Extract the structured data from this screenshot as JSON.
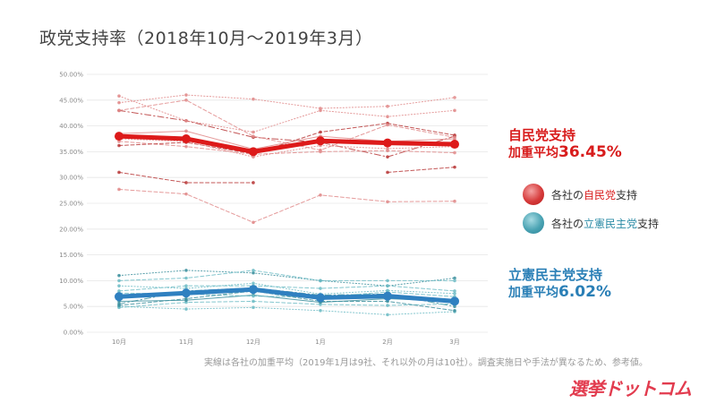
{
  "title": "政党支持率（2018年10月～2019年3月）",
  "footnote": "実線は各社の加重平均（2019年1月は9社、それ以外の月は10社）。調査実施日や手法が異なるため、参考値。",
  "logo": "選挙ドットコム",
  "annotations": {
    "ldp": {
      "title": "自民党支持",
      "avg_label": "加重平均",
      "avg_value": "36.45%"
    },
    "cdp": {
      "title": "立憲民主党支持",
      "avg_label": "加重平均",
      "avg_value": "6.02%"
    }
  },
  "legend": [
    {
      "prefix": "各社の",
      "party": "自民党",
      "suffix": "支持",
      "color": "#d63b3b"
    },
    {
      "prefix": "各社の",
      "party": "立憲民主党",
      "suffix": "支持",
      "color": "#4aa3b3"
    }
  ],
  "colors": {
    "ldp_avg": "#dd1a1a",
    "ldp_polls": "#e08a8a",
    "ldp_polls_dark": "#b83a3a",
    "cdp_avg": "#2f80c0",
    "cdp_polls": "#6fbcc6",
    "cdp_polls_dark": "#3c8f9e"
  },
  "chart_data": {
    "type": "line",
    "categories": [
      "10月",
      "11月",
      "12月",
      "1月",
      "2月",
      "3月"
    ],
    "y_ticks": [
      "0.00%",
      "5.00%",
      "10.00%",
      "15.00%",
      "20.00%",
      "25.00%",
      "30.00%",
      "35.00%",
      "40.00%",
      "45.00%",
      "50.00%"
    ],
    "ylim": [
      0,
      50
    ],
    "grid": true,
    "series": [
      {
        "party": "ldp",
        "kind": "average",
        "values": [
          38.0,
          37.5,
          35.0,
          37.1,
          36.7,
          36.45
        ]
      },
      {
        "party": "ldp",
        "kind": "poll",
        "style": "dotted",
        "values": [
          44.5,
          46.0,
          45.2,
          43.4,
          43.8,
          45.5
        ]
      },
      {
        "party": "ldp",
        "kind": "poll",
        "style": "dashdot",
        "values": [
          43.0,
          41.0,
          37.8,
          36.8,
          34.0,
          38.0
        ]
      },
      {
        "party": "ldp",
        "kind": "poll",
        "style": "dashed",
        "values": [
          37.0,
          36.0,
          34.5,
          35.0,
          35.2,
          34.8
        ]
      },
      {
        "party": "ldp",
        "kind": "poll",
        "style": "dotted",
        "values": [
          45.8,
          41.0,
          38.8,
          43.0,
          41.8,
          43.0
        ]
      },
      {
        "party": "ldp",
        "kind": "poll",
        "style": "dashed",
        "values": [
          36.2,
          36.8,
          34.6,
          38.8,
          40.5,
          38.2
        ]
      },
      {
        "party": "ldp",
        "kind": "poll",
        "style": "solid",
        "values": [
          38.5,
          39.0,
          35.5,
          38.0,
          37.0,
          37.5
        ]
      },
      {
        "party": "ldp",
        "kind": "poll",
        "style": "dashed",
        "values": [
          43.0,
          45.0,
          38.0,
          35.3,
          40.2,
          37.8
        ]
      },
      {
        "party": "ldp",
        "kind": "poll",
        "style": "dashed",
        "values": [
          31.0,
          29.0,
          29.0,
          null,
          31.0,
          32.0
        ]
      },
      {
        "party": "ldp",
        "kind": "poll",
        "style": "dashed",
        "values": [
          27.7,
          26.8,
          21.3,
          26.6,
          25.3,
          25.4
        ]
      },
      {
        "party": "ldp",
        "kind": "poll",
        "style": "dotted",
        "values": [
          37.5,
          37.0,
          34.0,
          36.2,
          35.6,
          36.0
        ]
      },
      {
        "party": "cdp",
        "kind": "average",
        "values": [
          6.9,
          7.6,
          8.3,
          6.7,
          7.0,
          6.02
        ]
      },
      {
        "party": "cdp",
        "kind": "poll",
        "style": "dotted",
        "values": [
          11.0,
          12.0,
          11.5,
          10.0,
          9.0,
          10.5
        ]
      },
      {
        "party": "cdp",
        "kind": "poll",
        "style": "dashed",
        "values": [
          10.0,
          10.5,
          12.0,
          10.0,
          10.0,
          10.0
        ]
      },
      {
        "party": "cdp",
        "kind": "poll",
        "style": "dashed",
        "values": [
          8.0,
          9.0,
          9.0,
          8.5,
          9.0,
          8.0
        ]
      },
      {
        "party": "cdp",
        "kind": "poll",
        "style": "dashdot",
        "values": [
          5.5,
          8.0,
          8.6,
          7.2,
          7.4,
          5.0
        ]
      },
      {
        "party": "cdp",
        "kind": "poll",
        "style": "dotted",
        "values": [
          5.0,
          4.5,
          4.8,
          4.2,
          3.4,
          4.0
        ]
      },
      {
        "party": "cdp",
        "kind": "poll",
        "style": "dashed",
        "values": [
          4.8,
          5.8,
          6.0,
          5.4,
          5.2,
          5.5
        ]
      },
      {
        "party": "cdp",
        "kind": "poll",
        "style": "solid",
        "values": [
          6.0,
          6.2,
          7.2,
          5.8,
          6.5,
          6.0
        ]
      },
      {
        "party": "cdp",
        "kind": "poll",
        "style": "dashed",
        "values": [
          7.6,
          7.4,
          7.0,
          6.8,
          7.8,
          6.9
        ]
      },
      {
        "party": "cdp",
        "kind": "poll",
        "style": "dotted",
        "values": [
          9.0,
          8.5,
          9.5,
          7.4,
          8.1,
          7.5
        ]
      },
      {
        "party": "cdp",
        "kind": "poll",
        "style": "dashed",
        "values": [
          5.2,
          6.5,
          8.0,
          6.0,
          6.0,
          4.2
        ]
      }
    ]
  }
}
